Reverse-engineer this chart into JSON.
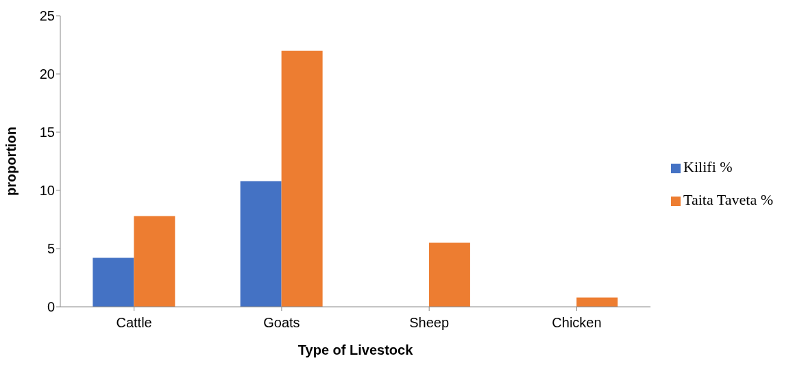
{
  "chart_data": {
    "type": "bar",
    "xlabel": "Type of Livestock",
    "ylabel": "proportion",
    "categories": [
      "Cattle",
      "Goats",
      "Sheep",
      "Chicken"
    ],
    "series": [
      {
        "name": "Kilifi %",
        "color": "#4472c4",
        "values": [
          4.2,
          10.8,
          0,
          0
        ]
      },
      {
        "name": "Taita Taveta %",
        "color": "#ed7d31",
        "values": [
          7.8,
          22.0,
          5.5,
          0.8
        ]
      }
    ],
    "ylim": [
      0,
      25
    ],
    "yticks": [
      0,
      5,
      10,
      15,
      20,
      25
    ],
    "grid": false,
    "legend": "right"
  }
}
